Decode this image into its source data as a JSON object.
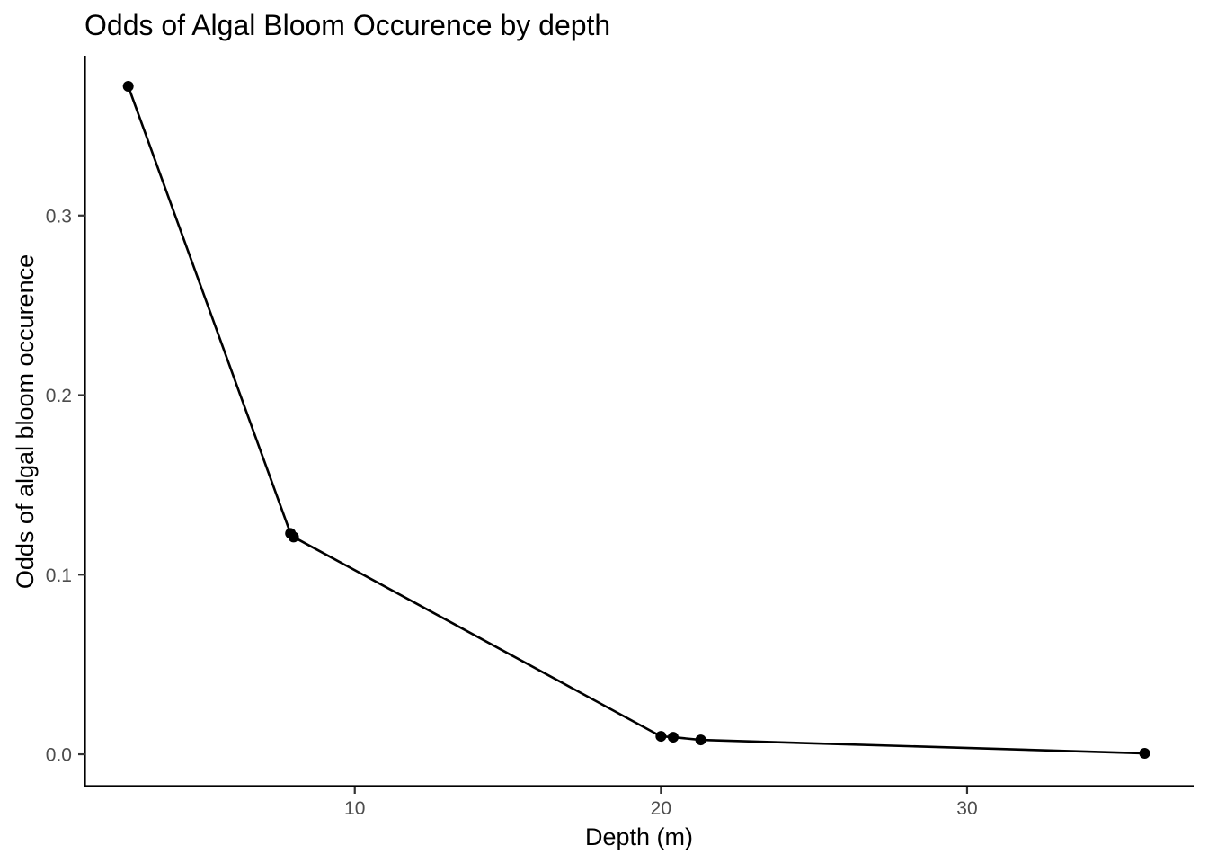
{
  "chart_data": {
    "type": "line",
    "title": "Odds of Algal Bloom Occurence by depth",
    "xlabel": "Depth (m)",
    "ylabel": "Odds of algal bloom occurence",
    "xlim": [
      1.2,
      37.4
    ],
    "ylim": [
      -0.018,
      0.389
    ],
    "x_ticks": [
      {
        "value": 10,
        "label": "10"
      },
      {
        "value": 20,
        "label": "20"
      },
      {
        "value": 30,
        "label": "30"
      }
    ],
    "y_ticks": [
      {
        "value": 0.0,
        "label": "0.0"
      },
      {
        "value": 0.1,
        "label": "0.1"
      },
      {
        "value": 0.2,
        "label": "0.2"
      },
      {
        "value": 0.3,
        "label": "0.3"
      }
    ],
    "grid": false,
    "legend": "none",
    "series": [
      {
        "color": "#000000",
        "x": [
          2.6,
          7.9,
          8.0,
          20.0,
          20.4,
          21.3,
          35.8
        ],
        "y": [
          0.372,
          0.123,
          0.121,
          0.01,
          0.0095,
          0.008,
          0.0005
        ]
      }
    ]
  }
}
